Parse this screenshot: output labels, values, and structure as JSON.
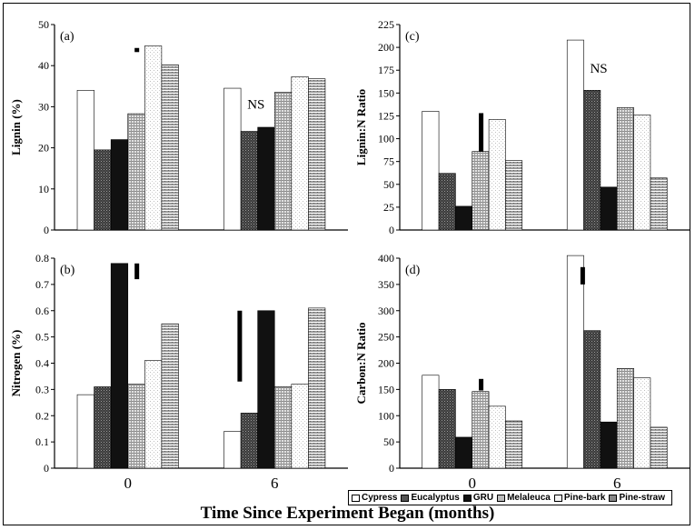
{
  "figure": {
    "xlabel": "Time Since Experiment Began (months)"
  },
  "legend": {
    "items": [
      {
        "name": "Cypress",
        "color": "#ffffff"
      },
      {
        "name": "Eucalyptus",
        "color": "#555555"
      },
      {
        "name": "GRU",
        "color": "#111111"
      },
      {
        "name": "Melaleuca",
        "color": "#bbbbbb"
      },
      {
        "name": "Pine-bark",
        "color": "#f4f4f4"
      },
      {
        "name": "Pine-straw",
        "color": "#888888"
      }
    ]
  },
  "chart_data": [
    {
      "panel": "(a)",
      "type": "bar",
      "ylabel": "Lignin (%)",
      "ylim": [
        0,
        50
      ],
      "yticks": [
        0,
        10,
        20,
        30,
        40,
        50
      ],
      "categories": [
        "0",
        "6"
      ],
      "series": [
        {
          "name": "Cypress",
          "values": [
            34,
            34.5
          ]
        },
        {
          "name": "Eucalyptus",
          "values": [
            19.5,
            24
          ]
        },
        {
          "name": "GRU",
          "values": [
            22,
            25
          ]
        },
        {
          "name": "Melaleuca",
          "values": [
            28.3,
            33.5
          ]
        },
        {
          "name": "Pine-bark",
          "values": [
            44.8,
            37.3
          ]
        },
        {
          "name": "Pine-straw",
          "values": [
            40.2,
            36.8
          ]
        }
      ],
      "annotations": [
        {
          "group": 1,
          "text": "NS"
        }
      ],
      "lsd_bars": [
        {
          "group": 0,
          "ymin": 43.3,
          "ymax": 44.3
        }
      ],
      "grid": false
    },
    {
      "panel": "(c)",
      "type": "bar",
      "ylabel": "Lignin:N Ratio",
      "ylim": [
        0,
        225
      ],
      "yticks": [
        0,
        25,
        50,
        75,
        100,
        125,
        150,
        175,
        200,
        225
      ],
      "categories": [
        "0",
        "6"
      ],
      "series": [
        {
          "name": "Cypress",
          "values": [
            130,
            208
          ]
        },
        {
          "name": "Eucalyptus",
          "values": [
            62,
            153
          ]
        },
        {
          "name": "GRU",
          "values": [
            26,
            47
          ]
        },
        {
          "name": "Melaleuca",
          "values": [
            86,
            134
          ]
        },
        {
          "name": "Pine-bark",
          "values": [
            121,
            126
          ]
        },
        {
          "name": "Pine-straw",
          "values": [
            76,
            57
          ]
        }
      ],
      "annotations": [
        {
          "group": 1,
          "text": "NS"
        }
      ],
      "lsd_bars": [
        {
          "group": 0,
          "ymin": 86,
          "ymax": 128
        }
      ],
      "grid": false
    },
    {
      "panel": "(b)",
      "type": "bar",
      "ylabel": "Nitrogen (%)",
      "ylim": [
        0,
        0.8
      ],
      "yticks": [
        0,
        0.1,
        0.2,
        0.3,
        0.4,
        0.5,
        0.6,
        0.7,
        0.8
      ],
      "categories": [
        "0",
        "6"
      ],
      "series": [
        {
          "name": "Cypress",
          "values": [
            0.28,
            0.14
          ]
        },
        {
          "name": "Eucalyptus",
          "values": [
            0.31,
            0.21
          ]
        },
        {
          "name": "GRU",
          "values": [
            0.78,
            0.6
          ]
        },
        {
          "name": "Melaleuca",
          "values": [
            0.32,
            0.31
          ]
        },
        {
          "name": "Pine-bark",
          "values": [
            0.41,
            0.32
          ]
        },
        {
          "name": "Pine-straw",
          "values": [
            0.55,
            0.61
          ]
        }
      ],
      "annotations": [],
      "lsd_bars": [
        {
          "group": 0,
          "ymin": 0.72,
          "ymax": 0.78
        },
        {
          "group": 1,
          "ymin": 0.33,
          "ymax": 0.6
        }
      ],
      "grid": false
    },
    {
      "panel": "(d)",
      "type": "bar",
      "ylabel": "Carbon:N Ratio",
      "ylim": [
        0,
        400
      ],
      "yticks": [
        0,
        50,
        100,
        150,
        200,
        250,
        300,
        350,
        400
      ],
      "categories": [
        "0",
        "6"
      ],
      "series": [
        {
          "name": "Cypress",
          "values": [
            177,
            405
          ]
        },
        {
          "name": "Eucalyptus",
          "values": [
            150,
            262
          ]
        },
        {
          "name": "GRU",
          "values": [
            59,
            88
          ]
        },
        {
          "name": "Melaleuca",
          "values": [
            146,
            190
          ]
        },
        {
          "name": "Pine-bark",
          "values": [
            118,
            172
          ]
        },
        {
          "name": "Pine-straw",
          "values": [
            90,
            78
          ]
        }
      ],
      "annotations": [],
      "lsd_bars": [
        {
          "group": 0,
          "ymin": 148,
          "ymax": 170
        },
        {
          "group": 1,
          "ymin": 350,
          "ymax": 383
        }
      ],
      "grid": false
    }
  ]
}
